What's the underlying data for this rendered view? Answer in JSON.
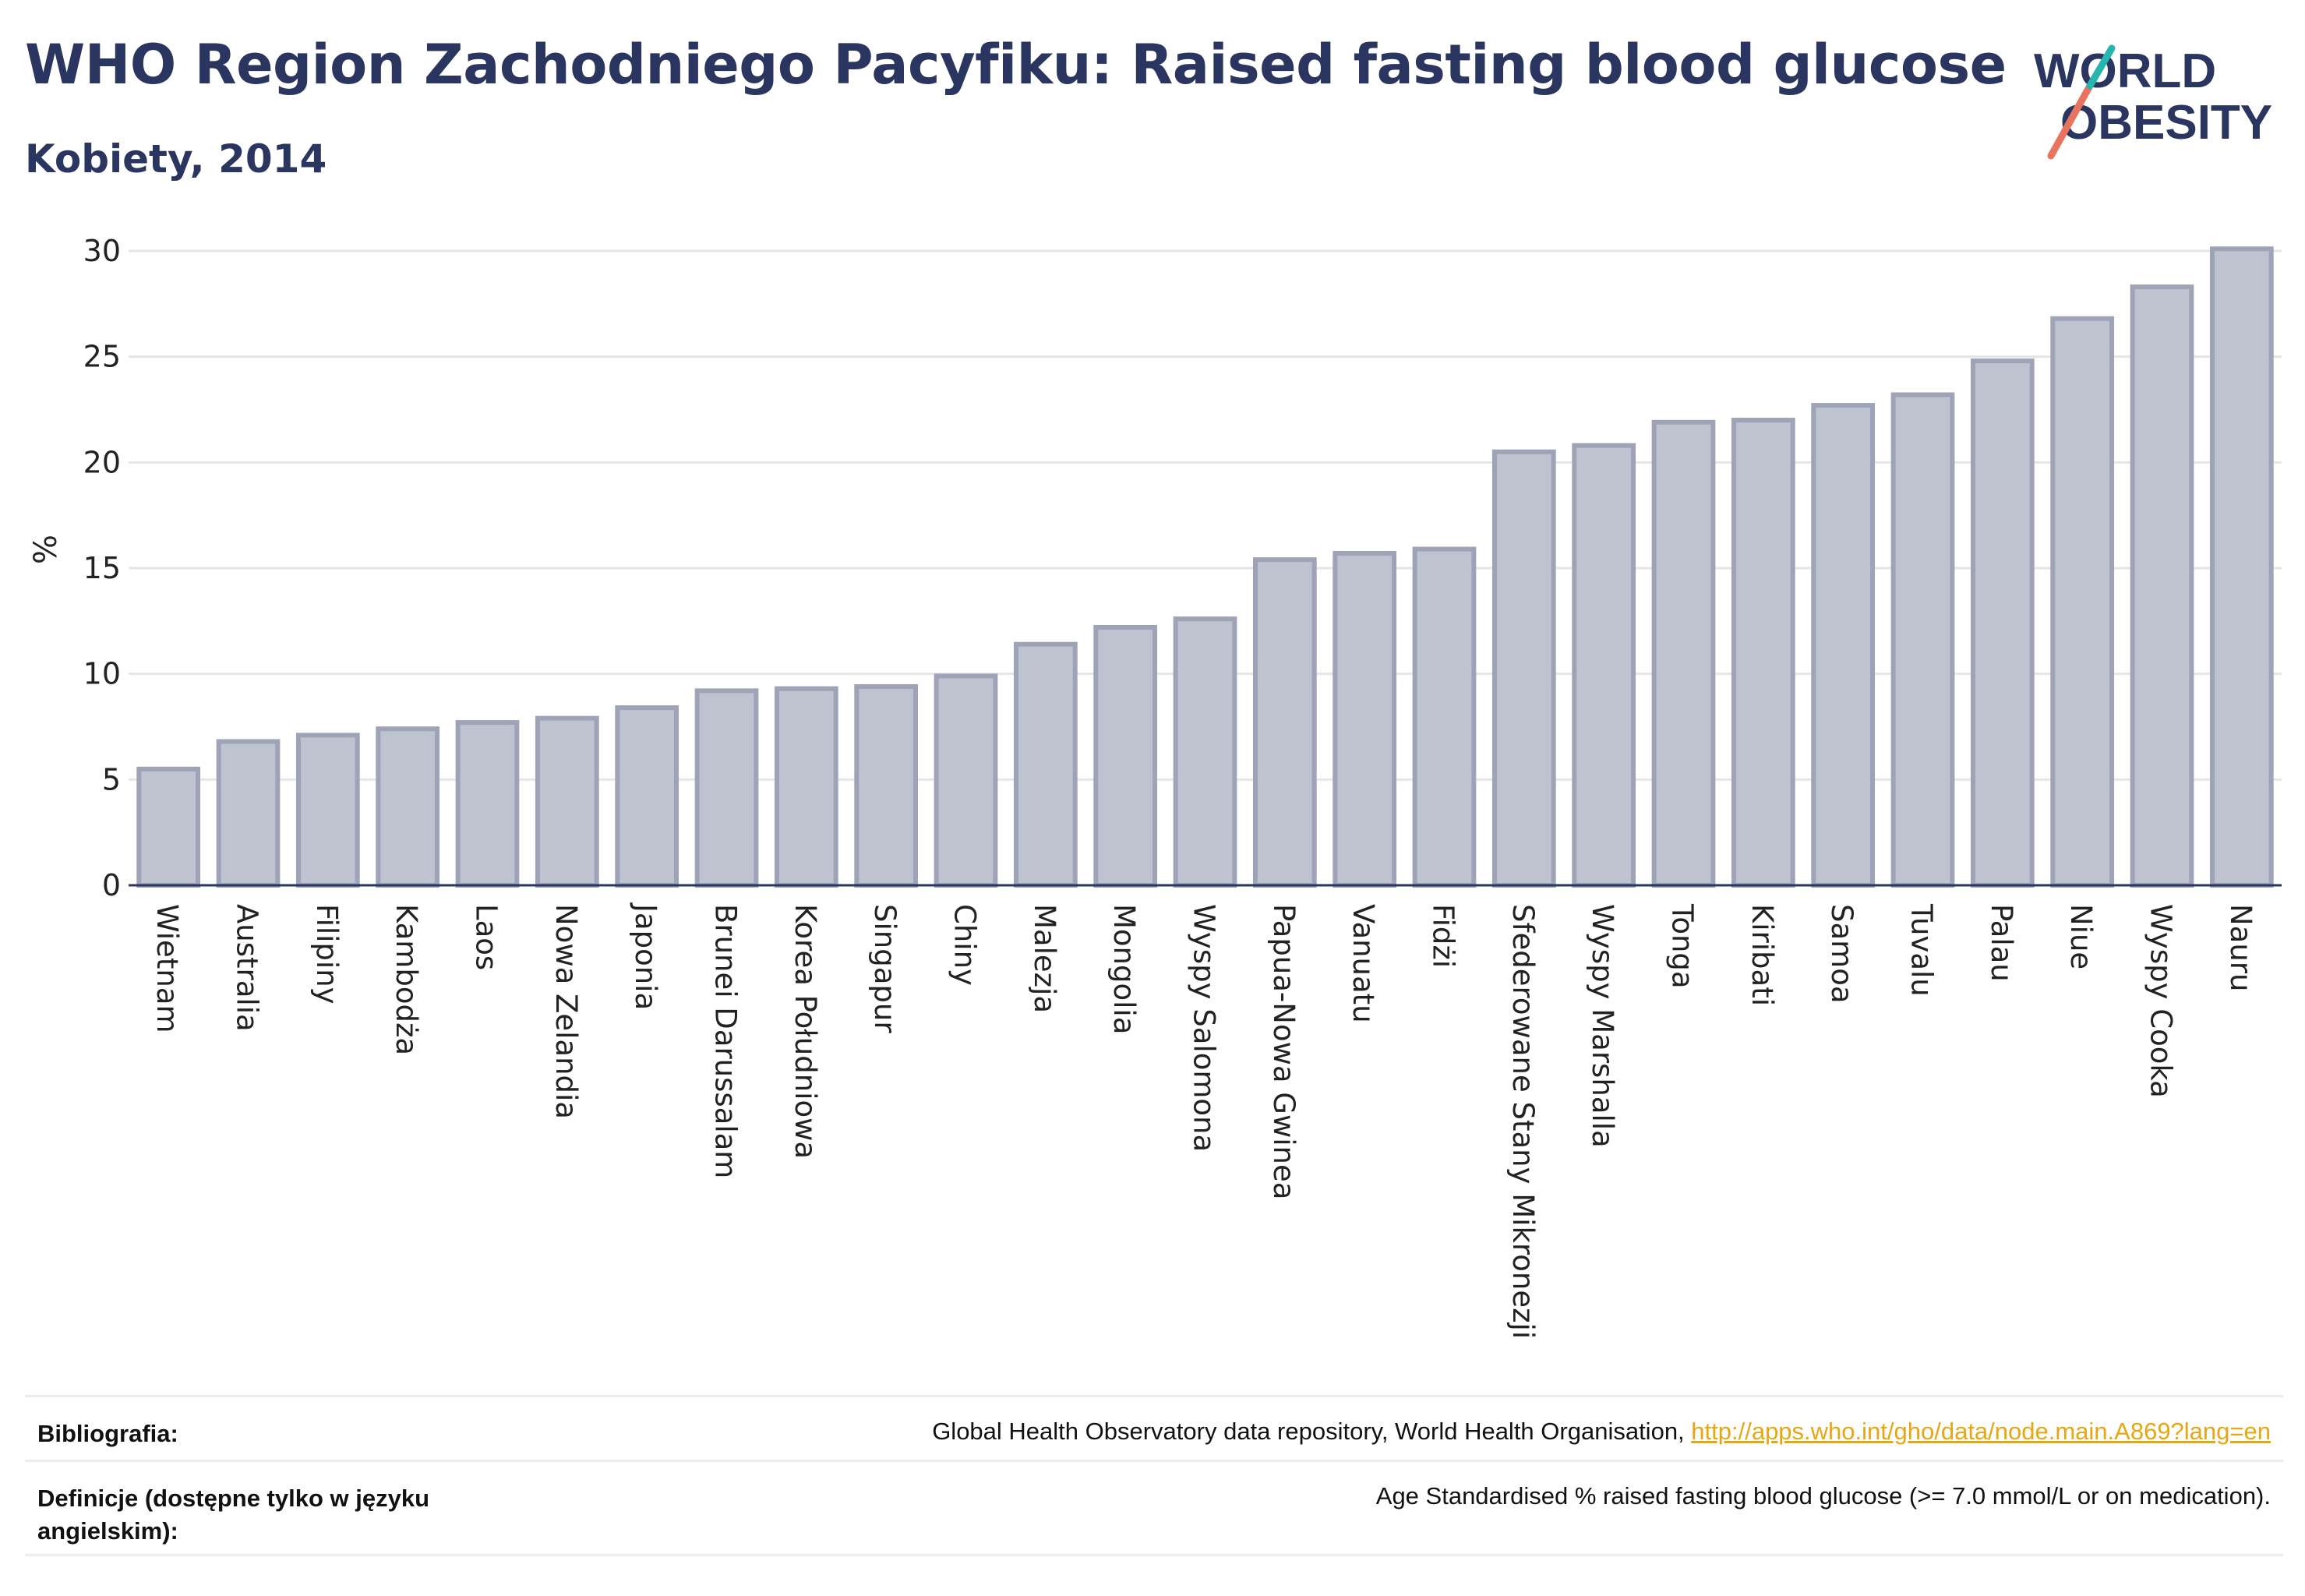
{
  "title": "WHO Region Zachodniego Pacyfiku: Raised fasting blood glucose",
  "subtitle": "Kobiety, 2014",
  "logo": {
    "line1": "WORLD",
    "line2": "OBESITY"
  },
  "colors": {
    "title": "#2a3560",
    "bar_fill": "#bfc2cf",
    "bar_stroke": "#9ea3b8",
    "link": "#e8a712",
    "grid": "#e6e6e6"
  },
  "chart_data": {
    "type": "bar",
    "ylabel": "%",
    "ylim": [
      0,
      30
    ],
    "yticks": [
      0,
      5,
      10,
      15,
      20,
      25,
      30
    ],
    "grid": true,
    "categories": [
      "Wietnam",
      "Australia",
      "Filipiny",
      "Kambodża",
      "Laos",
      "Nowa Zelandia",
      "Japonia",
      "Brunei Darussalam",
      "Korea Południowa",
      "Singapur",
      "Chiny",
      "Malezja",
      "Mongolia",
      "Wyspy Salomona",
      "Papua-Nowa Gwinea",
      "Vanuatu",
      "Fidżi",
      "Sfederowane Stany Mikronezji",
      "Wyspy Marshalla",
      "Tonga",
      "Kiribati",
      "Samoa",
      "Tuvalu",
      "Palau",
      "Niue",
      "Wyspy Cooka",
      "Nauru"
    ],
    "values": [
      5.5,
      6.8,
      7.1,
      7.4,
      7.7,
      7.9,
      8.4,
      9.2,
      9.3,
      9.4,
      9.9,
      11.4,
      12.2,
      12.6,
      15.4,
      15.7,
      15.9,
      20.5,
      20.8,
      21.9,
      22.0,
      22.7,
      23.2,
      24.8,
      26.8,
      28.3,
      30.1
    ]
  },
  "references": {
    "bib_label": "Bibliografia:",
    "bib_text": "Global Health Observatory data repository, World Health Organisation, ",
    "bib_link": "http://apps.who.int/gho/data/node.main.A869?lang=en",
    "def_label": "Definicje (dostępne tylko w języku angielskim):",
    "def_text": "Age Standardised % raised fasting blood glucose (>= 7.0 mmol/L or on medication)."
  }
}
